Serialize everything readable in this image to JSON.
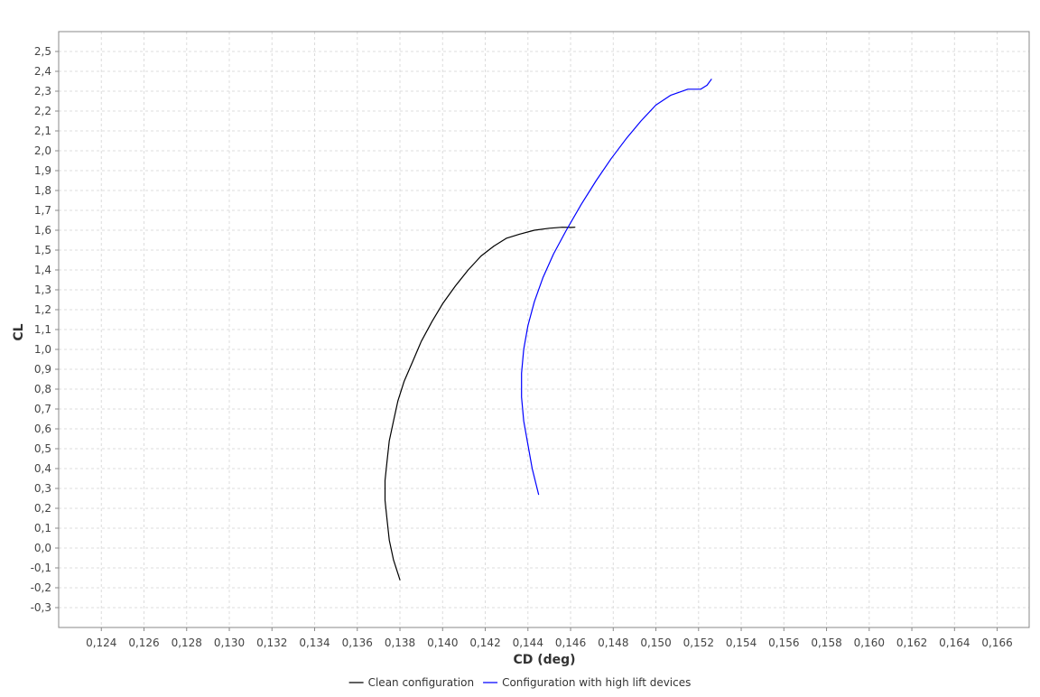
{
  "chart_data": {
    "type": "line",
    "xlabel": "CD (deg)",
    "ylabel": "CL",
    "xlim": [
      0.122,
      0.1675
    ],
    "ylim": [
      -0.4,
      2.6
    ],
    "x_ticks": [
      0.124,
      0.126,
      0.128,
      0.13,
      0.132,
      0.134,
      0.136,
      0.138,
      0.14,
      0.142,
      0.144,
      0.146,
      0.148,
      0.15,
      0.152,
      0.154,
      0.156,
      0.158,
      0.16,
      0.162,
      0.164,
      0.166
    ],
    "x_tick_labels": [
      "0,124",
      "0,126",
      "0,128",
      "0,130",
      "0,132",
      "0,134",
      "0,136",
      "0,138",
      "0,140",
      "0,142",
      "0,144",
      "0,146",
      "0,148",
      "0,150",
      "0,152",
      "0,154",
      "0,156",
      "0,158",
      "0,160",
      "0,162",
      "0,164",
      "0,166"
    ],
    "y_ticks": [
      -0.3,
      -0.2,
      -0.1,
      0.0,
      0.1,
      0.2,
      0.3,
      0.4,
      0.5,
      0.6,
      0.7,
      0.8,
      0.9,
      1.0,
      1.1,
      1.2,
      1.3,
      1.4,
      1.5,
      1.6,
      1.7,
      1.8,
      1.9,
      2.0,
      2.1,
      2.2,
      2.3,
      2.4,
      2.5
    ],
    "y_tick_labels": [
      "-0,3",
      "-0,2",
      "-0,1",
      "0,0",
      "0,1",
      "0,2",
      "0,3",
      "0,4",
      "0,5",
      "0,6",
      "0,7",
      "0,8",
      "0,9",
      "1,0",
      "1,1",
      "1,2",
      "1,3",
      "1,4",
      "1,5",
      "1,6",
      "1,7",
      "1,8",
      "1,9",
      "2,0",
      "2,1",
      "2,2",
      "2,3",
      "2,4",
      "2,5"
    ],
    "grid": true,
    "legend_position": "bottom",
    "series": [
      {
        "name": "Clean configuration",
        "color": "#000000",
        "x": [
          0.138,
          0.1377,
          0.1375,
          0.1374,
          0.1373,
          0.1373,
          0.1374,
          0.1375,
          0.1377,
          0.1379,
          0.1382,
          0.1386,
          0.139,
          0.1395,
          0.14,
          0.1406,
          0.1412,
          0.1418,
          0.1424,
          0.143,
          0.1436,
          0.1443,
          0.145,
          0.1456,
          0.146,
          0.1462
        ],
        "y": [
          -0.16,
          -0.06,
          0.04,
          0.14,
          0.24,
          0.34,
          0.44,
          0.54,
          0.64,
          0.74,
          0.84,
          0.94,
          1.04,
          1.14,
          1.23,
          1.32,
          1.4,
          1.47,
          1.52,
          1.56,
          1.58,
          1.6,
          1.61,
          1.615,
          1.614,
          1.615
        ]
      },
      {
        "name": "Configuration with high lift devices",
        "color": "#0000ff",
        "x": [
          0.1445,
          0.1442,
          0.144,
          0.1438,
          0.1437,
          0.1437,
          0.1438,
          0.144,
          0.1443,
          0.1447,
          0.1452,
          0.1458,
          0.1465,
          0.1472,
          0.1479,
          0.1486,
          0.1493,
          0.15,
          0.1507,
          0.1515,
          0.1521,
          0.1524,
          0.1526
        ],
        "y": [
          0.27,
          0.4,
          0.52,
          0.64,
          0.76,
          0.88,
          1.0,
          1.12,
          1.24,
          1.36,
          1.48,
          1.6,
          1.73,
          1.85,
          1.96,
          2.06,
          2.15,
          2.23,
          2.28,
          2.31,
          2.31,
          2.33,
          2.36
        ]
      }
    ]
  }
}
